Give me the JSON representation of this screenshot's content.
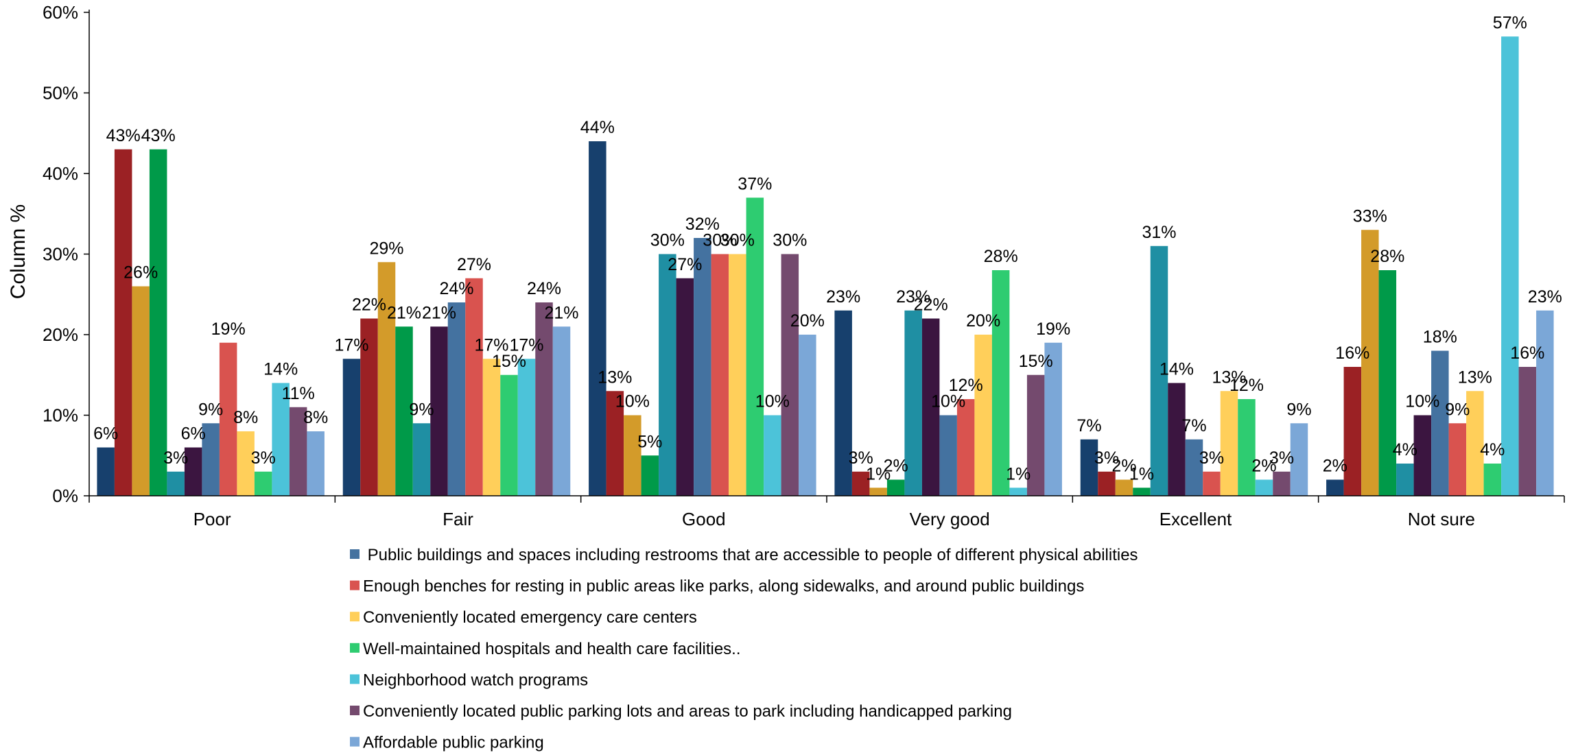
{
  "chart_data": {
    "type": "bar",
    "ylabel": "Column %",
    "xlabel": "",
    "title": "",
    "ylim": [
      0,
      60
    ],
    "yticks": [
      "0%",
      "10%",
      "20%",
      "30%",
      "40%",
      "50%",
      "60%"
    ],
    "grid": false,
    "legend_position": "bottom",
    "categories": [
      "Poor",
      "Fair",
      "Good",
      "Very  good",
      "Excellent",
      "Not sure"
    ],
    "series": [
      {
        "color": "#17406d",
        "values": [
          6,
          17,
          44,
          23,
          7,
          2
        ],
        "labels": [
          "6%",
          "17%",
          "44%",
          "23%",
          "7%",
          "2%"
        ]
      },
      {
        "color": "#9b2124",
        "values": [
          43,
          22,
          13,
          3,
          3,
          16
        ],
        "labels": [
          "43%",
          "22%",
          "13%",
          "3%",
          "3%",
          "16%"
        ]
      },
      {
        "color": "#d39b2a",
        "values": [
          26,
          29,
          10,
          1,
          2,
          33
        ],
        "labels": [
          "26%",
          "29%",
          "10%",
          "1%",
          "2%",
          "33%"
        ]
      },
      {
        "color": "#009a49",
        "values": [
          43,
          21,
          5,
          2,
          1,
          28
        ],
        "labels": [
          "43%",
          "21%",
          "5%",
          "2%",
          "1%",
          "28%"
        ]
      },
      {
        "color": "#1f8fa3",
        "values": [
          3,
          9,
          30,
          23,
          31,
          4
        ],
        "labels": [
          "3%",
          "9%",
          "30%",
          "23%",
          "31%",
          "4%"
        ]
      },
      {
        "color": "#3b1540",
        "values": [
          6,
          21,
          27,
          22,
          14,
          10
        ],
        "labels": [
          "6%",
          "21%",
          "27%",
          "22%",
          "14%",
          "10%"
        ]
      },
      {
        "name": " Public buildings and spaces including restrooms that are accessible to people of different physical abilities",
        "color": "#4472a0",
        "values": [
          9,
          24,
          32,
          10,
          7,
          18
        ],
        "labels": [
          "9%",
          "24%",
          "32%",
          "10%",
          "7%",
          "18%"
        ]
      },
      {
        "name": "Enough benches for resting in public areas like parks, along sidewalks, and around public buildings",
        "color": "#d9534f",
        "values": [
          19,
          27,
          30,
          12,
          3,
          9
        ],
        "labels": [
          "19%",
          "27%",
          "30%",
          "12%",
          "3%",
          "9%"
        ]
      },
      {
        "name": "Conveniently located emergency care centers",
        "color": "#ffcf5a",
        "values": [
          8,
          17,
          30,
          20,
          13,
          13
        ],
        "labels": [
          "8%",
          "17%",
          "30%",
          "20%",
          "13%",
          "13%"
        ]
      },
      {
        "name": "Well-maintained hospitals and health care facilities..",
        "color": "#2ecc71",
        "values": [
          3,
          15,
          37,
          28,
          12,
          4
        ],
        "labels": [
          "3%",
          "15%",
          "37%",
          "28%",
          "12%",
          "4%"
        ]
      },
      {
        "name": "Neighborhood watch programs",
        "color": "#4cc3d9",
        "values": [
          14,
          17,
          10,
          1,
          2,
          57
        ],
        "labels": [
          "14%",
          "17%",
          "10%",
          "1%",
          "2%",
          "57%"
        ]
      },
      {
        "name": "Conveniently located public parking lots and areas to park including handicapped parking",
        "color": "#744a6e",
        "values": [
          11,
          24,
          30,
          15,
          3,
          16
        ],
        "labels": [
          "11%",
          "24%",
          "30%",
          "15%",
          "3%",
          "16%"
        ]
      },
      {
        "name": "Affordable public parking",
        "color": "#7ba7d7",
        "values": [
          8,
          21,
          20,
          19,
          9,
          23
        ],
        "labels": [
          "8%",
          "21%",
          "20%",
          "19%",
          "9%",
          "23%"
        ]
      }
    ]
  }
}
